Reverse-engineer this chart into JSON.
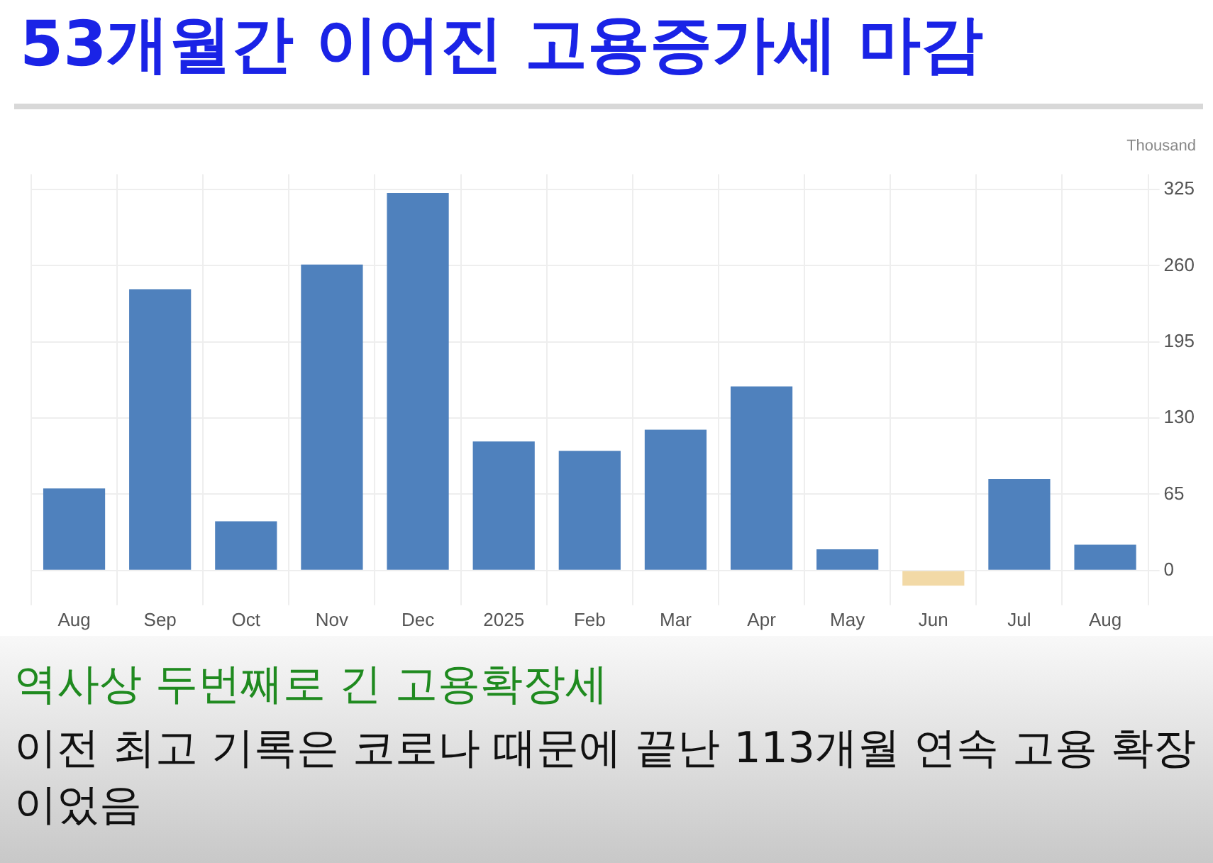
{
  "chart_data": {
    "type": "bar",
    "title": "53개월간 이어진 고용증가세 마감",
    "ylabel": "Thousand",
    "categories": [
      "Aug",
      "Sep",
      "Oct",
      "Nov",
      "Dec",
      "2025",
      "Feb",
      "Mar",
      "Apr",
      "May",
      "Jun",
      "Jul",
      "Aug"
    ],
    "values": [
      70,
      240,
      42,
      261,
      322,
      110,
      102,
      120,
      157,
      18,
      -13,
      78,
      22
    ],
    "colors": [
      "#4f81bd",
      "#4f81bd",
      "#4f81bd",
      "#4f81bd",
      "#4f81bd",
      "#4f81bd",
      "#4f81bd",
      "#4f81bd",
      "#4f81bd",
      "#4f81bd",
      "#f2d9a6",
      "#4f81bd",
      "#4f81bd"
    ],
    "ylim": [
      -20,
      338
    ],
    "yticks": [
      0,
      65,
      130,
      195,
      260,
      325
    ],
    "grid": true,
    "legend": false,
    "annotations": [
      "역사상 두번째로 긴 고용확장세",
      "이전 최고 기록은 코로나 때문에 끝난 113개월 연속 고용 확장이었음"
    ]
  }
}
